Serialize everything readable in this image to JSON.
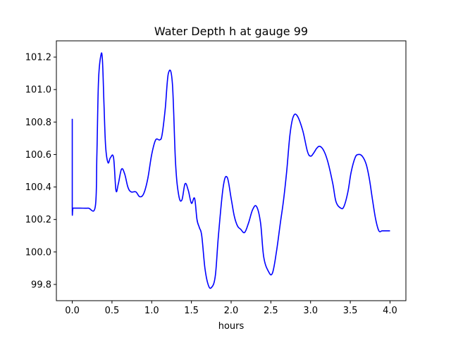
{
  "chart_data": {
    "type": "line",
    "title": "Water Depth h at gauge 99",
    "xlabel": "hours",
    "ylabel": "",
    "xlim": [
      -0.2,
      4.2
    ],
    "ylim": [
      99.7,
      101.3
    ],
    "xticks": [
      0.0,
      0.5,
      1.0,
      1.5,
      2.0,
      2.5,
      3.0,
      3.5,
      4.0
    ],
    "xtick_labels": [
      "0.0",
      "0.5",
      "1.0",
      "1.5",
      "2.0",
      "2.5",
      "3.0",
      "3.5",
      "4.0"
    ],
    "yticks": [
      99.8,
      100.0,
      100.2,
      100.4,
      100.6,
      100.8,
      101.0,
      101.2
    ],
    "ytick_labels": [
      "99.8",
      "100.0",
      "100.2",
      "100.4",
      "100.6",
      "100.8",
      "101.0",
      "101.2"
    ],
    "grid": false,
    "legend": "none",
    "series": [
      {
        "color": "#0000ff",
        "x": [
          0.0,
          0.0,
          0.01,
          0.1,
          0.2,
          0.29,
          0.31,
          0.33,
          0.36,
          0.38,
          0.4,
          0.42,
          0.45,
          0.48,
          0.52,
          0.55,
          0.58,
          0.62,
          0.66,
          0.7,
          0.74,
          0.8,
          0.85,
          0.9,
          0.95,
          1.0,
          1.05,
          1.1,
          1.13,
          1.17,
          1.21,
          1.26,
          1.3,
          1.34,
          1.38,
          1.42,
          1.46,
          1.5,
          1.54,
          1.57,
          1.6,
          1.63,
          1.67,
          1.71,
          1.75,
          1.8,
          1.84,
          1.9,
          1.95,
          2.0,
          2.04,
          2.08,
          2.12,
          2.17,
          2.22,
          2.27,
          2.32,
          2.37,
          2.41,
          2.47,
          2.52,
          2.57,
          2.62,
          2.66,
          2.7,
          2.74,
          2.78,
          2.83,
          2.9,
          2.96,
          3.0,
          3.04,
          3.08,
          3.12,
          3.17,
          3.22,
          3.28,
          3.32,
          3.38,
          3.42,
          3.47,
          3.51,
          3.56,
          3.6,
          3.65,
          3.7,
          3.74,
          3.78,
          3.82,
          3.86,
          3.9,
          3.95,
          4.0
        ],
        "y": [
          100.82,
          100.27,
          100.27,
          100.27,
          100.27,
          100.28,
          100.6,
          101.05,
          101.21,
          101.18,
          100.9,
          100.65,
          100.55,
          100.58,
          100.58,
          100.38,
          100.42,
          100.51,
          100.48,
          100.4,
          100.37,
          100.37,
          100.34,
          100.36,
          100.45,
          100.6,
          100.69,
          100.69,
          100.72,
          100.88,
          101.1,
          101.04,
          100.55,
          100.35,
          100.32,
          100.42,
          100.38,
          100.3,
          100.33,
          100.2,
          100.15,
          100.1,
          99.9,
          99.8,
          99.78,
          99.85,
          100.1,
          100.4,
          100.46,
          100.33,
          100.22,
          100.16,
          100.14,
          100.12,
          100.18,
          100.26,
          100.28,
          100.18,
          99.97,
          99.88,
          99.87,
          100.0,
          100.18,
          100.32,
          100.5,
          100.72,
          100.83,
          100.84,
          100.75,
          100.62,
          100.59,
          100.61,
          100.64,
          100.65,
          100.62,
          100.55,
          100.42,
          100.31,
          100.27,
          100.28,
          100.37,
          100.49,
          100.58,
          100.6,
          100.59,
          100.54,
          100.45,
          100.32,
          100.2,
          100.13,
          100.13,
          100.13,
          100.13
        ]
      }
    ]
  }
}
